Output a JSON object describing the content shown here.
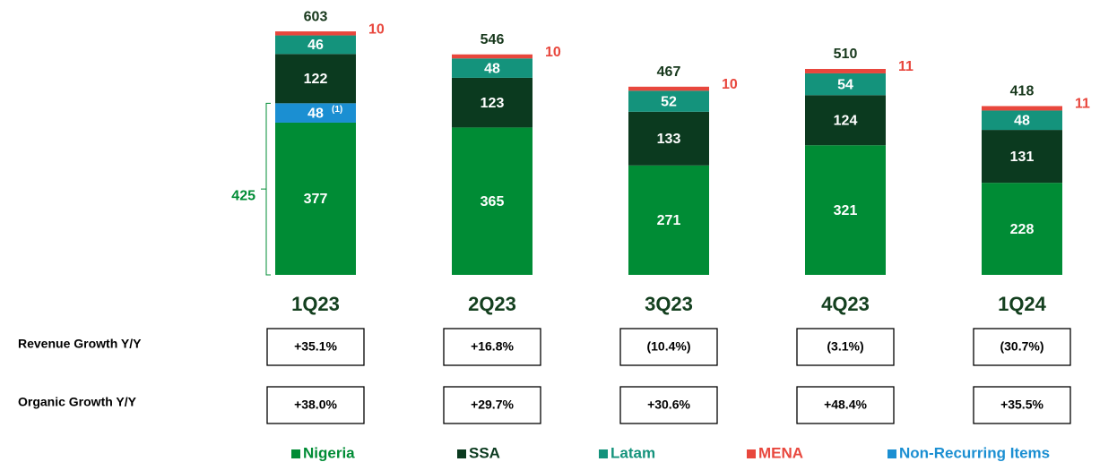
{
  "chart_data": {
    "type": "stacked_bar",
    "categories": [
      "1Q23",
      "2Q23",
      "3Q23",
      "4Q23",
      "1Q24"
    ],
    "series": [
      {
        "name": "Nigeria",
        "color": "#008c35",
        "values": [
          377,
          365,
          271,
          321,
          228
        ]
      },
      {
        "name": "Non-Recurring Items",
        "color": "#1b8fd2",
        "values": [
          48,
          null,
          null,
          null,
          null
        ]
      },
      {
        "name": "SSA",
        "color": "#0b3a1f",
        "values": [
          122,
          123,
          133,
          124,
          131
        ]
      },
      {
        "name": "Latam",
        "color": "#14937c",
        "values": [
          46,
          48,
          52,
          54,
          48
        ]
      },
      {
        "name": "MENA",
        "color": "#e8473d",
        "values": [
          10,
          10,
          10,
          11,
          11
        ]
      }
    ],
    "totals": [
      603,
      546,
      467,
      510,
      418
    ],
    "legend_order": [
      0,
      2,
      3,
      4,
      1
    ],
    "bracket_label": 425,
    "footnote_marker": "(1)",
    "growth_rows": [
      {
        "label": "Revenue Growth Y/Y",
        "values": [
          "+35.1%",
          "+16.8%",
          "(10.4%)",
          "(3.1%)",
          "(30.7%)"
        ]
      },
      {
        "label": "Organic Growth Y/Y",
        "values": [
          "+38.0%",
          "+29.7%",
          "+30.6%",
          "+48.4%",
          "+35.5%"
        ]
      }
    ]
  }
}
